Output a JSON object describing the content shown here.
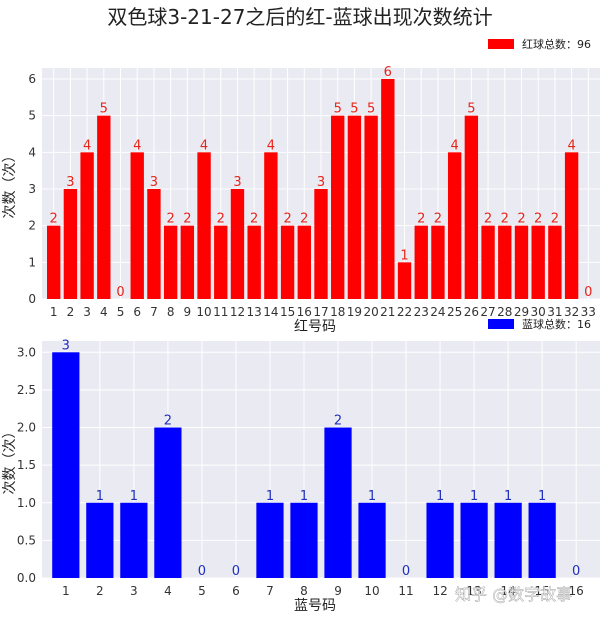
{
  "title": "双色球3-21-27之后的红-蓝球出现次数统计",
  "watermark": "知乎 @数字故事",
  "colors": {
    "red": "#ff0000",
    "blue": "#0000ff",
    "plot_bg": "#eaeaf2",
    "grid": "#ffffff",
    "label_red": "#e8251b",
    "label_blue": "#1f2fbf"
  },
  "chart_data": [
    {
      "id": "red",
      "type": "bar",
      "categories": [
        "1",
        "2",
        "3",
        "4",
        "5",
        "6",
        "7",
        "8",
        "9",
        "10",
        "11",
        "12",
        "13",
        "14",
        "15",
        "16",
        "17",
        "18",
        "19",
        "20",
        "21",
        "22",
        "23",
        "24",
        "25",
        "26",
        "27",
        "28",
        "29",
        "30",
        "31",
        "32",
        "33"
      ],
      "values": [
        2,
        3,
        4,
        5,
        0,
        4,
        3,
        2,
        2,
        4,
        2,
        3,
        2,
        4,
        2,
        2,
        3,
        5,
        5,
        5,
        6,
        1,
        2,
        2,
        4,
        5,
        2,
        2,
        2,
        2,
        2,
        4,
        0
      ],
      "xlabel": "红号码",
      "ylabel": "次数（次）",
      "ylim": [
        0,
        6.3
      ],
      "yticks": [
        "0",
        "1",
        "2",
        "3",
        "4",
        "5",
        "6"
      ],
      "legend": "红球总数：96",
      "legend_position": "top-right",
      "grid": true
    },
    {
      "id": "blue",
      "type": "bar",
      "categories": [
        "1",
        "2",
        "3",
        "4",
        "5",
        "6",
        "7",
        "8",
        "9",
        "10",
        "11",
        "12",
        "13",
        "14",
        "15",
        "16"
      ],
      "values": [
        3,
        1,
        1,
        2,
        0,
        0,
        1,
        1,
        2,
        1,
        0,
        1,
        1,
        1,
        1,
        0
      ],
      "xlabel": "蓝号码",
      "ylabel": "次数（次）",
      "ylim": [
        0,
        3.15
      ],
      "yticks": [
        "0.0",
        "0.5",
        "1.0",
        "1.5",
        "2.0",
        "2.5",
        "3.0"
      ],
      "legend": "蓝球总数：16",
      "legend_position": "top-right",
      "grid": true
    }
  ]
}
